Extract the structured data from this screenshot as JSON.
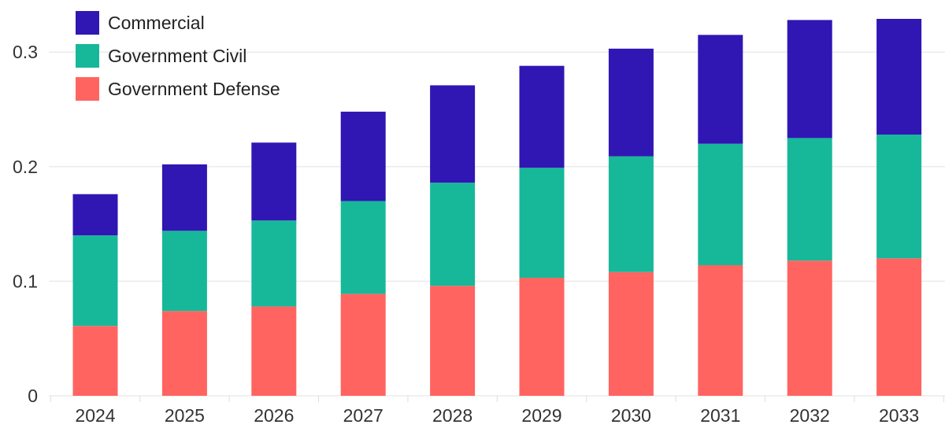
{
  "chart_data": {
    "type": "bar",
    "stacked": true,
    "title": "",
    "xlabel": "",
    "ylabel": "",
    "categories": [
      "2024",
      "2025",
      "2026",
      "2027",
      "2028",
      "2029",
      "2030",
      "2031",
      "2032",
      "2033"
    ],
    "series": [
      {
        "name": "Government Defense",
        "color": "#ff6461",
        "values": [
          0.061,
          0.074,
          0.078,
          0.089,
          0.096,
          0.103,
          0.108,
          0.114,
          0.118,
          0.12
        ]
      },
      {
        "name": "Government Civil",
        "color": "#17b899",
        "values": [
          0.079,
          0.07,
          0.075,
          0.081,
          0.09,
          0.096,
          0.101,
          0.106,
          0.107,
          0.108
        ]
      },
      {
        "name": "Commercial",
        "color": "#3016b3",
        "values": [
          0.036,
          0.058,
          0.068,
          0.078,
          0.085,
          0.089,
          0.094,
          0.095,
          0.103,
          0.101
        ]
      }
    ],
    "legend_order": [
      "Commercial",
      "Government Civil",
      "Government Defense"
    ],
    "legend_position": "top-left",
    "yticks": [
      0,
      0.1,
      0.2,
      0.3
    ],
    "ytick_labels": [
      "0",
      "0.1",
      "0.2",
      "0.3"
    ],
    "ylim": [
      0,
      0.34
    ],
    "grid": true
  }
}
